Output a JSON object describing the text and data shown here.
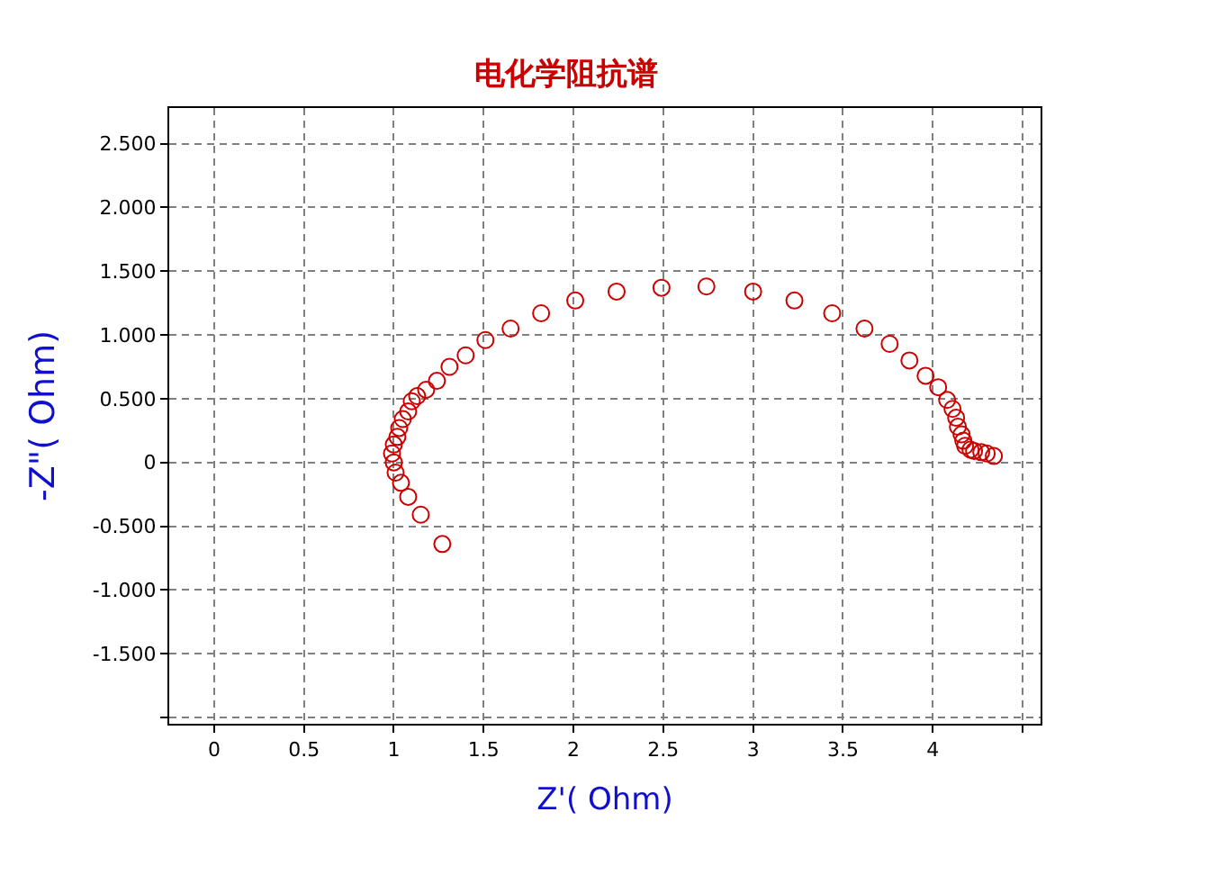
{
  "chart_data": {
    "type": "scatter",
    "title": "电化学阻抗谱",
    "xlabel": "Z'( Ohm)",
    "ylabel": "-Z\"( Ohm)",
    "marker": "circle",
    "grid": true,
    "legend": false,
    "xlim": [
      -0.25,
      4.6
    ],
    "ylim": [
      -2.05,
      2.78
    ],
    "xticks": [
      0,
      0.5,
      1,
      1.5,
      2,
      2.5,
      3,
      3.5,
      4,
      {
        "value": 4.5,
        "label": null
      }
    ],
    "yticks": [
      {
        "value": -2,
        "label": null
      },
      {
        "value": -1.5,
        "label": "-1.500"
      },
      {
        "value": -1,
        "label": "-1.000"
      },
      {
        "value": -0.5,
        "label": "-0.500"
      },
      0,
      {
        "value": 0.5,
        "label": "0.500"
      },
      {
        "value": 1,
        "label": "1.000"
      },
      {
        "value": 1.5,
        "label": "1.500"
      },
      {
        "value": 2,
        "label": "2.000"
      },
      {
        "value": 2.5,
        "label": "2.500"
      }
    ],
    "x": [
      1.27,
      1.15,
      1.08,
      1.04,
      1.01,
      1.0,
      0.99,
      1.0,
      1.02,
      1.03,
      1.05,
      1.08,
      1.1,
      1.13,
      1.18,
      1.24,
      1.31,
      1.4,
      1.51,
      1.65,
      1.82,
      2.01,
      2.24,
      2.49,
      2.74,
      3.0,
      3.23,
      3.44,
      3.62,
      3.76,
      3.87,
      3.96,
      4.03,
      4.08,
      4.11,
      4.13,
      4.14,
      4.16,
      4.17,
      4.18,
      4.21,
      4.23,
      4.27,
      4.3,
      4.34
    ],
    "series": [
      {
        "color": "#cc0000",
        "values": [
          -0.64,
          -0.41,
          -0.27,
          -0.16,
          -0.08,
          0.0,
          0.07,
          0.14,
          0.2,
          0.27,
          0.34,
          0.4,
          0.48,
          0.52,
          0.57,
          0.64,
          0.75,
          0.84,
          0.96,
          1.05,
          1.17,
          1.27,
          1.34,
          1.37,
          1.38,
          1.34,
          1.27,
          1.17,
          1.05,
          0.93,
          0.8,
          0.68,
          0.59,
          0.49,
          0.42,
          0.35,
          0.28,
          0.22,
          0.17,
          0.13,
          0.1,
          0.09,
          0.08,
          0.07,
          0.05
        ]
      }
    ]
  }
}
